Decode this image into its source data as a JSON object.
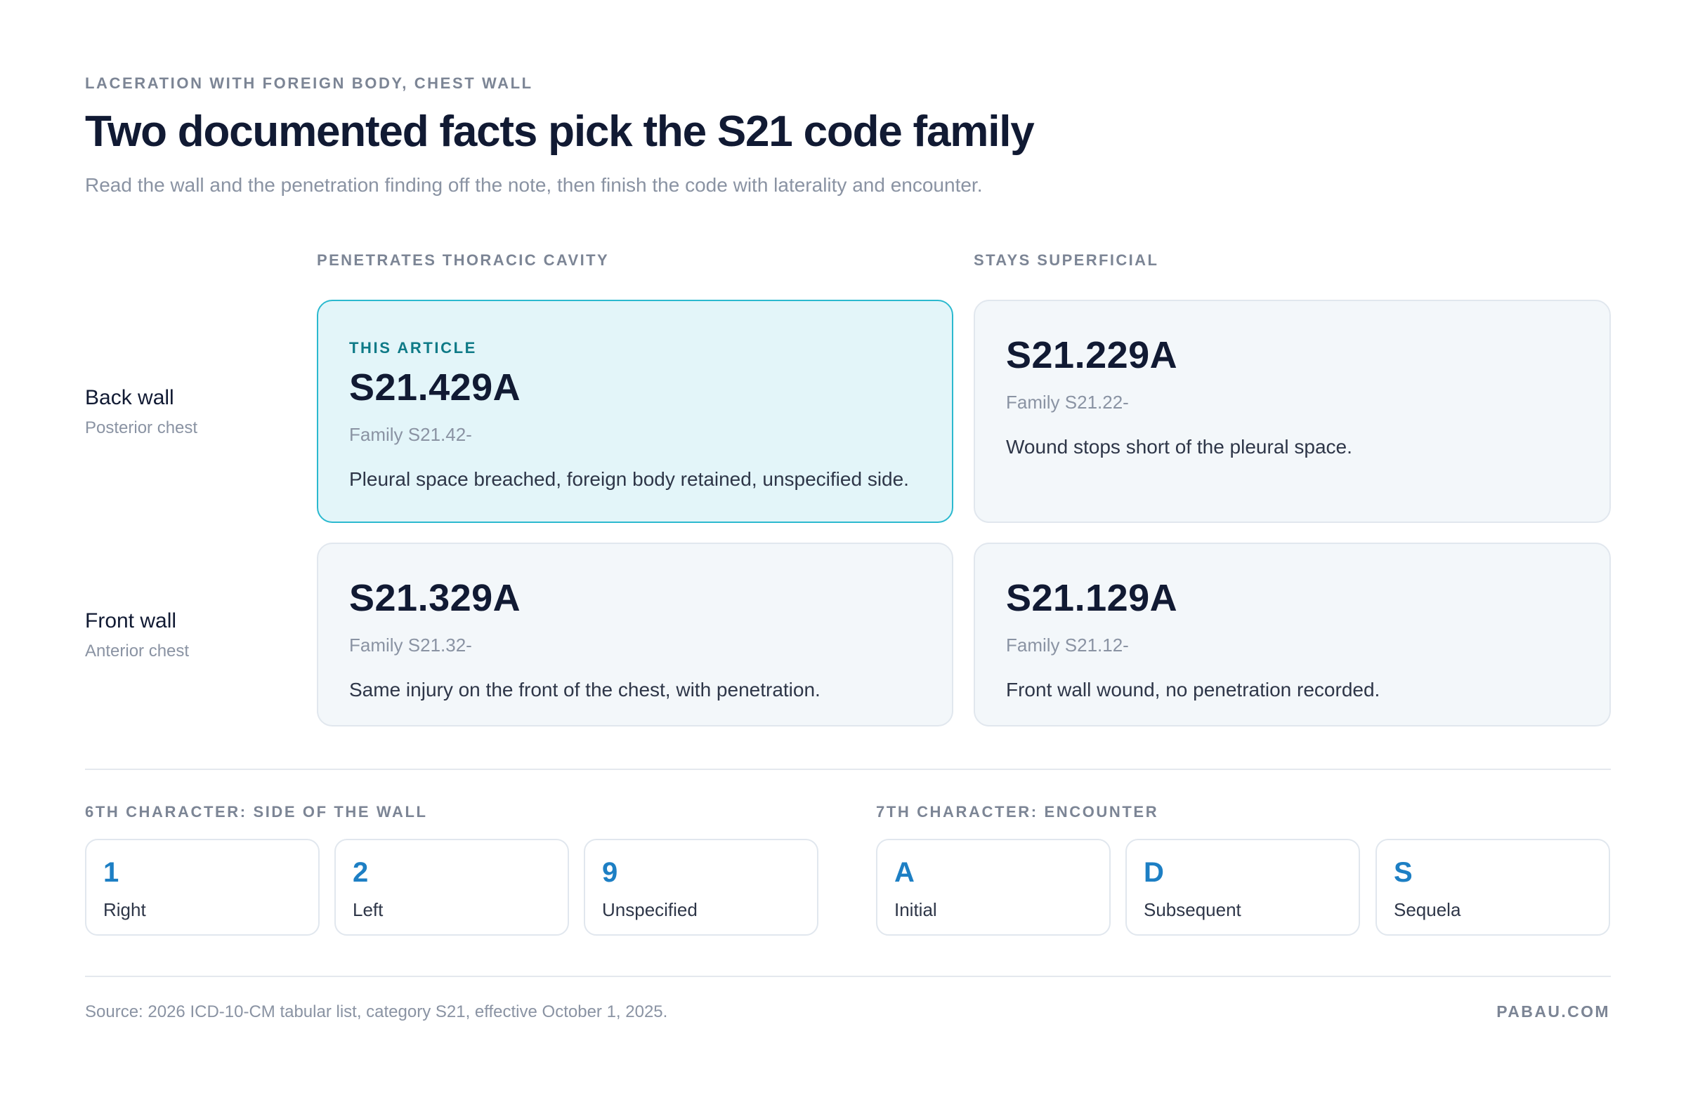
{
  "header": {
    "eyebrow": "LACERATION WITH FOREIGN BODY, CHEST WALL",
    "title": "Two documented facts pick the S21 code family",
    "subtitle": "Read the wall and the penetration finding off the note, then finish the code with laterality and encounter."
  },
  "columns": {
    "penetrates": "PENETRATES THORACIC CAVITY",
    "superficial": "STAYS SUPERFICIAL"
  },
  "rows": {
    "back": {
      "name": "Back wall",
      "sub": "Posterior chest"
    },
    "front": {
      "name": "Front wall",
      "sub": "Anterior chest"
    }
  },
  "cards": {
    "back_penetrates": {
      "tag": "THIS ARTICLE",
      "code": "S21.429A",
      "family": "Family S21.42-",
      "desc": "Pleural space breached, foreign body retained, unspecified side."
    },
    "back_superficial": {
      "code": "S21.229A",
      "family": "Family S21.22-",
      "desc": "Wound stops short of the pleural space."
    },
    "front_penetrates": {
      "code": "S21.329A",
      "family": "Family S21.32-",
      "desc": "Same injury on the front of the chest, with penetration."
    },
    "front_superficial": {
      "code": "S21.129A",
      "family": "Family S21.12-",
      "desc": "Front wall wound, no penetration recorded."
    }
  },
  "sixth_character": {
    "heading": "6TH CHARACTER: SIDE OF THE WALL",
    "options": [
      {
        "letter": "1",
        "meaning": "Right"
      },
      {
        "letter": "2",
        "meaning": "Left"
      },
      {
        "letter": "9",
        "meaning": "Unspecified"
      }
    ]
  },
  "seventh_character": {
    "heading": "7TH CHARACTER: ENCOUNTER",
    "options": [
      {
        "letter": "A",
        "meaning": "Initial"
      },
      {
        "letter": "D",
        "meaning": "Subsequent"
      },
      {
        "letter": "S",
        "meaning": "Sequela"
      }
    ]
  },
  "footer": {
    "source": "Source: 2026 ICD-10-CM tabular list, category S21, effective October 1, 2025.",
    "brand": "PABAU.COM"
  },
  "colors": {
    "highlight_fill": "#e3f5f9",
    "highlight_border": "#2bb9cf",
    "tag_text": "#0e7a87",
    "character_accent": "#1d7fc4",
    "title_text": "#111a33"
  }
}
